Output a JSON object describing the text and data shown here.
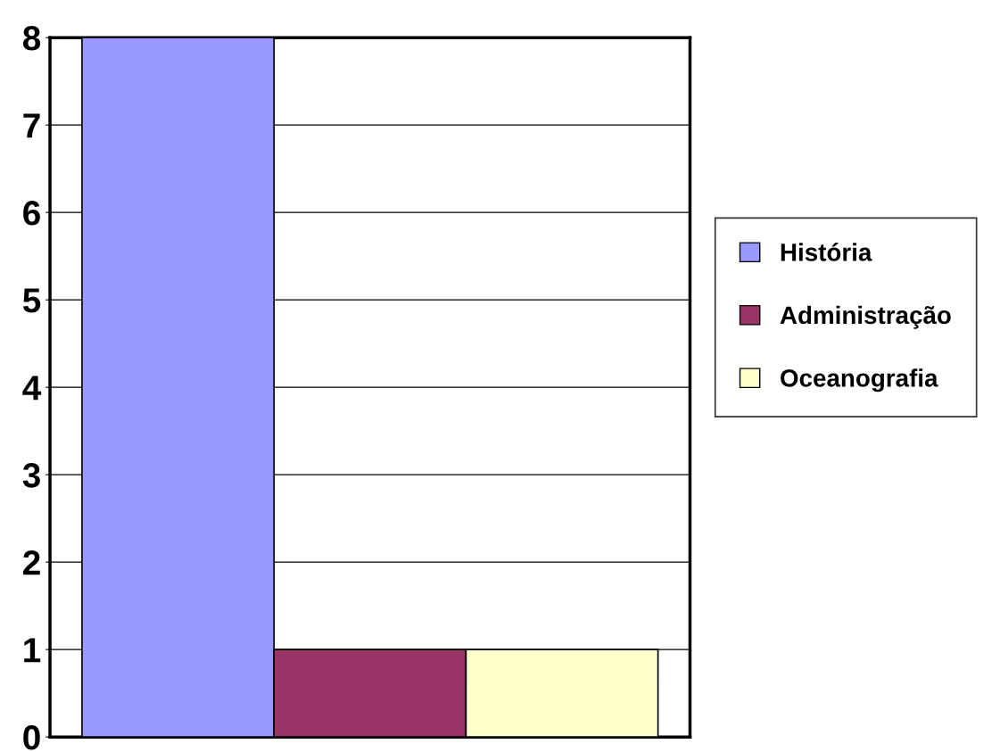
{
  "chart_data": {
    "type": "bar",
    "categories": [
      null
    ],
    "series": [
      {
        "name": "História",
        "color": "#9999ff",
        "values": [
          8
        ]
      },
      {
        "name": "Administração",
        "color": "#993366",
        "values": [
          1
        ]
      },
      {
        "name": "Oceanografia",
        "color": "#ffffcc",
        "values": [
          1
        ]
      }
    ],
    "ylim": [
      0,
      8
    ],
    "yticks": [
      0,
      1,
      2,
      3,
      4,
      5,
      6,
      7,
      8
    ],
    "grid": "y",
    "legend": "right"
  }
}
